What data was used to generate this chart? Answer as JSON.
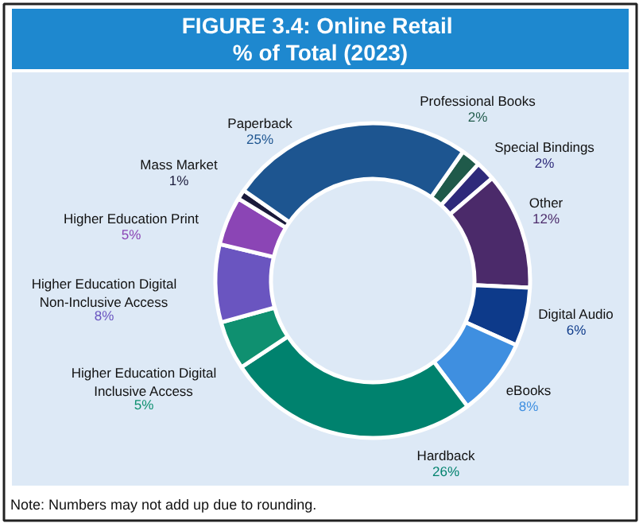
{
  "chart_data": {
    "type": "donut",
    "title": "FIGURE 3.4:  Online Retail\n% of Total (2023)",
    "categories": [
      "Professional Books",
      "Special Bindings",
      "Other",
      "Digital Audio",
      "eBooks",
      "Hardback",
      "Higher Education Digital\nInclusive Access",
      "Higher Education Digital\nNon-Inclusive Access",
      "Higher Education Print",
      "Mass Market",
      "Paperback"
    ],
    "values": [
      2,
      2,
      12,
      6,
      8,
      26,
      5,
      8,
      5,
      1,
      25
    ],
    "value_labels": [
      "2%",
      "2%",
      "12%",
      "6%",
      "8%",
      "26%",
      "5%",
      "8%",
      "5%",
      "1%",
      "25%"
    ],
    "colors": [
      "#1f5a4a",
      "#2e2a7a",
      "#4b2a6a",
      "#0d3a8a",
      "#3f8fe0",
      "#00826e",
      "#0f9070",
      "#6a55c0",
      "#8b45b5",
      "#1a1a3a",
      "#1d5590"
    ],
    "annotations": [
      "Note: Numbers may not add up due to rounding."
    ]
  }
}
